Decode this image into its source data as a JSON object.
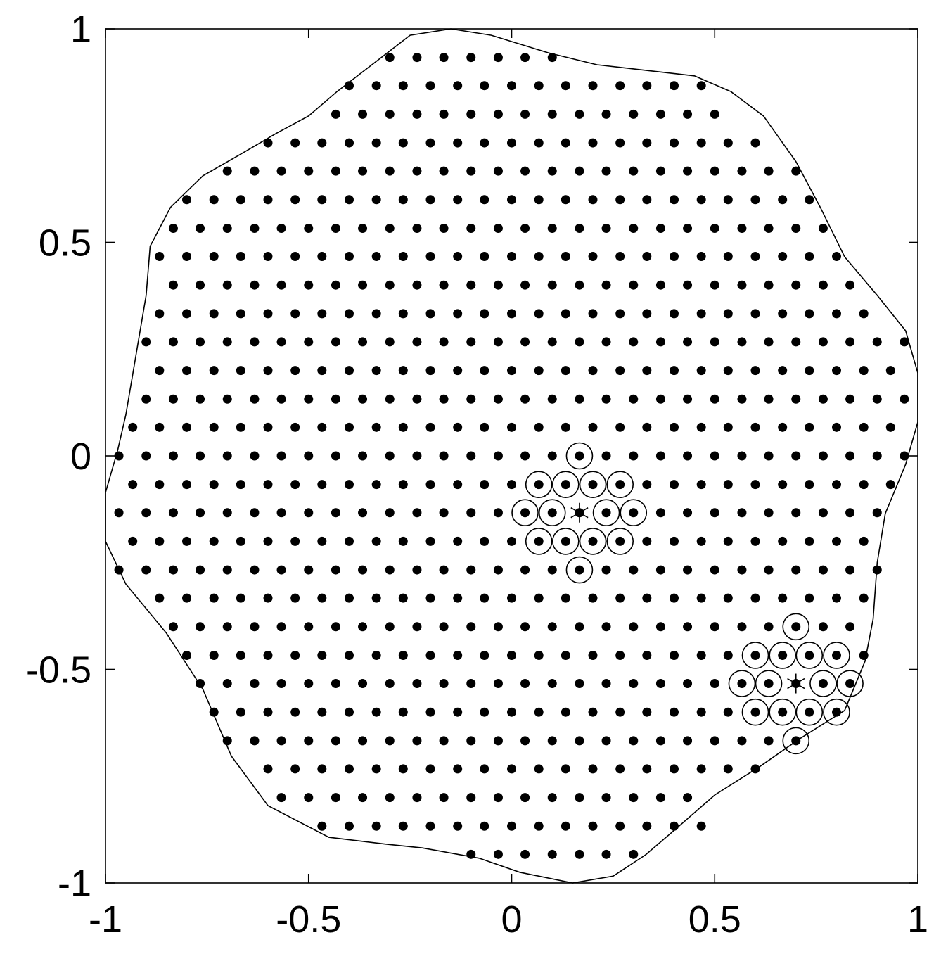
{
  "chart_data": {
    "type": "scatter",
    "xlim": [
      -1,
      1
    ],
    "ylim": [
      -1,
      1
    ],
    "xticks": [
      -1,
      -0.5,
      0,
      0.5,
      1
    ],
    "yticks": [
      -1,
      -0.5,
      0,
      0.5,
      1
    ],
    "boundary": {
      "x": [
        -0.15,
        -0.05,
        0.09,
        0.21,
        0.33,
        0.45,
        0.54,
        0.62,
        0.7,
        0.76,
        0.82,
        0.9,
        0.97,
        1.0,
        1.0,
        0.97,
        0.92,
        0.9,
        0.89,
        0.87,
        0.82,
        0.71,
        0.61,
        0.5,
        0.4,
        0.33,
        0.25,
        0.15,
        0.02,
        -0.08,
        -0.22,
        -0.31,
        -0.45,
        -0.6,
        -0.69,
        -0.76,
        -0.85,
        -0.95,
        -1.0,
        -1.0,
        -0.97,
        -0.95,
        -0.9,
        -0.89,
        -0.84,
        -0.76,
        -0.67,
        -0.58,
        -0.5,
        -0.43,
        -0.34,
        -0.25
      ],
      "y": [
        1.0,
        0.985,
        0.944,
        0.916,
        0.903,
        0.89,
        0.853,
        0.796,
        0.689,
        0.582,
        0.466,
        0.376,
        0.293,
        0.194,
        0.079,
        -0.02,
        -0.135,
        -0.25,
        -0.382,
        -0.481,
        -0.596,
        -0.662,
        -0.728,
        -0.794,
        -0.877,
        -0.934,
        -0.984,
        -1.0,
        -0.975,
        -0.942,
        -0.918,
        -0.909,
        -0.893,
        -0.819,
        -0.703,
        -0.547,
        -0.415,
        -0.3,
        -0.2,
        -0.086,
        0.013,
        0.096,
        0.376,
        0.491,
        0.582,
        0.656,
        0.705,
        0.755,
        0.796,
        0.853,
        0.919,
        0.985
      ]
    },
    "dots": [
      {
        "y": 0.933,
        "x": [
          -0.3,
          -0.233,
          -0.167,
          -0.1,
          -0.033,
          0.033,
          0.1
        ]
      },
      {
        "y": 0.867,
        "x": [
          -0.4,
          -0.333,
          -0.267,
          -0.2,
          -0.133,
          -0.067,
          0,
          0.067,
          0.133,
          0.2,
          0.267,
          0.333,
          0.4,
          0.467
        ]
      },
      {
        "y": 0.8,
        "x": [
          -0.433,
          -0.367,
          -0.3,
          -0.233,
          -0.167,
          -0.1,
          -0.033,
          0.033,
          0.1,
          0.167,
          0.233,
          0.3,
          0.367,
          0.433,
          0.5
        ]
      },
      {
        "y": 0.733,
        "x": [
          -0.6,
          -0.533,
          -0.467,
          -0.4,
          -0.333,
          -0.267,
          -0.2,
          -0.133,
          -0.067,
          0,
          0.067,
          0.133,
          0.2,
          0.267,
          0.333,
          0.4,
          0.467,
          0.533,
          0.6
        ]
      },
      {
        "y": 0.667,
        "x": [
          -0.7,
          -0.633,
          -0.567,
          -0.5,
          -0.433,
          -0.367,
          -0.3,
          -0.233,
          -0.167,
          -0.1,
          -0.033,
          0.033,
          0.1,
          0.167,
          0.233,
          0.3,
          0.367,
          0.433,
          0.5,
          0.567,
          0.633,
          0.7
        ]
      },
      {
        "y": 0.6,
        "x": [
          -0.8,
          -0.733,
          -0.667,
          -0.6,
          -0.533,
          -0.467,
          -0.4,
          -0.333,
          -0.267,
          -0.2,
          -0.133,
          -0.067,
          0,
          0.067,
          0.133,
          0.2,
          0.267,
          0.333,
          0.4,
          0.467,
          0.533,
          0.6,
          0.667,
          0.733
        ]
      },
      {
        "y": 0.533,
        "x": [
          -0.833,
          -0.767,
          -0.7,
          -0.633,
          -0.567,
          -0.5,
          -0.433,
          -0.367,
          -0.3,
          -0.233,
          -0.167,
          -0.1,
          -0.033,
          0.033,
          0.1,
          0.167,
          0.233,
          0.3,
          0.367,
          0.433,
          0.5,
          0.567,
          0.633,
          0.7,
          0.767
        ]
      },
      {
        "y": 0.467,
        "x": [
          -0.867,
          -0.8,
          -0.733,
          -0.667,
          -0.6,
          -0.533,
          -0.467,
          -0.4,
          -0.333,
          -0.267,
          -0.2,
          -0.133,
          -0.067,
          0,
          0.067,
          0.133,
          0.2,
          0.267,
          0.333,
          0.4,
          0.467,
          0.533,
          0.6,
          0.667,
          0.733,
          0.8
        ]
      },
      {
        "y": 0.4,
        "x": [
          -0.833,
          -0.767,
          -0.7,
          -0.633,
          -0.567,
          -0.5,
          -0.433,
          -0.367,
          -0.3,
          -0.233,
          -0.167,
          -0.1,
          -0.033,
          0.033,
          0.1,
          0.167,
          0.233,
          0.3,
          0.367,
          0.433,
          0.5,
          0.567,
          0.633,
          0.7,
          0.767,
          0.833
        ]
      },
      {
        "y": 0.333,
        "x": [
          -0.867,
          -0.8,
          -0.733,
          -0.667,
          -0.6,
          -0.533,
          -0.467,
          -0.4,
          -0.333,
          -0.267,
          -0.2,
          -0.133,
          -0.067,
          0,
          0.067,
          0.133,
          0.2,
          0.267,
          0.333,
          0.4,
          0.467,
          0.533,
          0.6,
          0.667,
          0.733,
          0.8,
          0.867
        ]
      },
      {
        "y": 0.267,
        "x": [
          -0.9,
          -0.833,
          -0.767,
          -0.7,
          -0.633,
          -0.567,
          -0.5,
          -0.433,
          -0.367,
          -0.3,
          -0.233,
          -0.167,
          -0.1,
          -0.033,
          0.033,
          0.1,
          0.167,
          0.233,
          0.3,
          0.367,
          0.433,
          0.5,
          0.567,
          0.633,
          0.7,
          0.767,
          0.833,
          0.9,
          0.967
        ]
      },
      {
        "y": 0.2,
        "x": [
          -0.867,
          -0.8,
          -0.733,
          -0.667,
          -0.6,
          -0.533,
          -0.467,
          -0.4,
          -0.333,
          -0.267,
          -0.2,
          -0.133,
          -0.067,
          0,
          0.067,
          0.133,
          0.2,
          0.267,
          0.333,
          0.4,
          0.467,
          0.533,
          0.6,
          0.667,
          0.733,
          0.8,
          0.867,
          0.933
        ]
      },
      {
        "y": 0.133,
        "x": [
          -0.9,
          -0.833,
          -0.767,
          -0.7,
          -0.633,
          -0.567,
          -0.5,
          -0.433,
          -0.367,
          -0.3,
          -0.233,
          -0.167,
          -0.1,
          -0.033,
          0.033,
          0.1,
          0.167,
          0.233,
          0.3,
          0.367,
          0.433,
          0.5,
          0.567,
          0.633,
          0.7,
          0.767,
          0.833,
          0.9,
          0.967
        ]
      },
      {
        "y": 0.067,
        "x": [
          -0.933,
          -0.867,
          -0.8,
          -0.733,
          -0.667,
          -0.6,
          -0.533,
          -0.467,
          -0.4,
          -0.333,
          -0.267,
          -0.2,
          -0.133,
          -0.067,
          0,
          0.067,
          0.133,
          0.2,
          0.267,
          0.333,
          0.4,
          0.467,
          0.533,
          0.6,
          0.667,
          0.733,
          0.8,
          0.867,
          0.933
        ]
      },
      {
        "y": 0,
        "x": [
          -0.967,
          -0.9,
          -0.833,
          -0.767,
          -0.7,
          -0.633,
          -0.567,
          -0.5,
          -0.433,
          -0.367,
          -0.3,
          -0.233,
          -0.167,
          -0.1,
          -0.033,
          0.033,
          0.1,
          0.167,
          0.233,
          0.3,
          0.367,
          0.433,
          0.5,
          0.567,
          0.633,
          0.7,
          0.767,
          0.833,
          0.9,
          0.967
        ]
      },
      {
        "y": -0.067,
        "x": [
          -0.933,
          -0.867,
          -0.8,
          -0.733,
          -0.667,
          -0.6,
          -0.533,
          -0.467,
          -0.4,
          -0.333,
          -0.267,
          -0.2,
          -0.133,
          -0.067,
          0,
          0.067,
          0.133,
          0.2,
          0.267,
          0.333,
          0.4,
          0.467,
          0.533,
          0.6,
          0.667,
          0.733,
          0.8,
          0.867,
          0.933
        ]
      },
      {
        "y": -0.133,
        "x": [
          -0.967,
          -0.9,
          -0.833,
          -0.767,
          -0.7,
          -0.633,
          -0.567,
          -0.5,
          -0.433,
          -0.367,
          -0.3,
          -0.233,
          -0.167,
          -0.1,
          -0.033,
          0.033,
          0.1,
          0.167,
          0.233,
          0.3,
          0.367,
          0.433,
          0.5,
          0.567,
          0.633,
          0.7,
          0.767,
          0.833,
          0.9
        ]
      },
      {
        "y": -0.2,
        "x": [
          -0.933,
          -0.867,
          -0.8,
          -0.733,
          -0.667,
          -0.6,
          -0.533,
          -0.467,
          -0.4,
          -0.333,
          -0.267,
          -0.2,
          -0.133,
          -0.067,
          0,
          0.067,
          0.133,
          0.2,
          0.267,
          0.333,
          0.4,
          0.467,
          0.533,
          0.6,
          0.667,
          0.733,
          0.8,
          0.867
        ]
      },
      {
        "y": -0.267,
        "x": [
          -0.967,
          -0.9,
          -0.833,
          -0.767,
          -0.7,
          -0.633,
          -0.567,
          -0.5,
          -0.433,
          -0.367,
          -0.3,
          -0.233,
          -0.167,
          -0.1,
          -0.033,
          0.033,
          0.1,
          0.167,
          0.233,
          0.3,
          0.367,
          0.433,
          0.5,
          0.567,
          0.633,
          0.7,
          0.767,
          0.833,
          0.9
        ]
      },
      {
        "y": -0.333,
        "x": [
          -0.867,
          -0.8,
          -0.733,
          -0.667,
          -0.6,
          -0.533,
          -0.467,
          -0.4,
          -0.333,
          -0.267,
          -0.2,
          -0.133,
          -0.067,
          0,
          0.067,
          0.133,
          0.2,
          0.267,
          0.333,
          0.4,
          0.467,
          0.533,
          0.6,
          0.667,
          0.733,
          0.8,
          0.867
        ]
      },
      {
        "y": -0.4,
        "x": [
          -0.833,
          -0.767,
          -0.7,
          -0.633,
          -0.567,
          -0.5,
          -0.433,
          -0.367,
          -0.3,
          -0.233,
          -0.167,
          -0.1,
          -0.033,
          0.033,
          0.1,
          0.167,
          0.233,
          0.3,
          0.367,
          0.433,
          0.5,
          0.567,
          0.633,
          0.7,
          0.767,
          0.833
        ]
      },
      {
        "y": -0.467,
        "x": [
          -0.8,
          -0.733,
          -0.667,
          -0.6,
          -0.533,
          -0.467,
          -0.4,
          -0.333,
          -0.267,
          -0.2,
          -0.133,
          -0.067,
          0,
          0.067,
          0.133,
          0.2,
          0.267,
          0.333,
          0.4,
          0.467,
          0.533,
          0.6,
          0.667,
          0.733,
          0.8,
          0.867
        ]
      },
      {
        "y": -0.533,
        "x": [
          -0.767,
          -0.7,
          -0.633,
          -0.567,
          -0.5,
          -0.433,
          -0.367,
          -0.3,
          -0.233,
          -0.167,
          -0.1,
          -0.033,
          0.033,
          0.1,
          0.167,
          0.233,
          0.3,
          0.367,
          0.433,
          0.5,
          0.567,
          0.633,
          0.7,
          0.767,
          0.833
        ]
      },
      {
        "y": -0.6,
        "x": [
          -0.733,
          -0.667,
          -0.6,
          -0.533,
          -0.467,
          -0.4,
          -0.333,
          -0.267,
          -0.2,
          -0.133,
          -0.067,
          0,
          0.067,
          0.133,
          0.2,
          0.267,
          0.333,
          0.4,
          0.467,
          0.533,
          0.6,
          0.667,
          0.733,
          0.8
        ]
      },
      {
        "y": -0.667,
        "x": [
          -0.7,
          -0.633,
          -0.567,
          -0.5,
          -0.433,
          -0.367,
          -0.3,
          -0.233,
          -0.167,
          -0.1,
          -0.033,
          0.033,
          0.1,
          0.167,
          0.233,
          0.3,
          0.367,
          0.433,
          0.5,
          0.567,
          0.633,
          0.7
        ]
      },
      {
        "y": -0.733,
        "x": [
          -0.6,
          -0.533,
          -0.467,
          -0.4,
          -0.333,
          -0.267,
          -0.2,
          -0.133,
          -0.067,
          0,
          0.067,
          0.133,
          0.2,
          0.267,
          0.333,
          0.4,
          0.467,
          0.533,
          0.6
        ]
      },
      {
        "y": -0.8,
        "x": [
          -0.567,
          -0.5,
          -0.433,
          -0.367,
          -0.3,
          -0.233,
          -0.167,
          -0.1,
          -0.033,
          0.033,
          0.1,
          0.167,
          0.233,
          0.3,
          0.367,
          0.433
        ]
      },
      {
        "y": -0.867,
        "x": [
          -0.467,
          -0.4,
          -0.333,
          -0.267,
          -0.2,
          -0.133,
          -0.067,
          0,
          0.067,
          0.133,
          0.2,
          0.267,
          0.333,
          0.4,
          0.467
        ]
      },
      {
        "y": -0.933,
        "x": [
          -0.1,
          -0.033,
          0.033,
          0.1,
          0.167,
          0.233,
          0.3
        ]
      }
    ],
    "circles": {
      "x": [
        0.167,
        0.067,
        0.133,
        0.2,
        0.267,
        0.033,
        0.1,
        0.233,
        0.3,
        0.067,
        0.133,
        0.2,
        0.267,
        0.167,
        0.7,
        0.6,
        0.667,
        0.733,
        0.8,
        0.567,
        0.633,
        0.767,
        0.833,
        0.6,
        0.667,
        0.733,
        0.8,
        0.7
      ],
      "y": [
        0,
        -0.067,
        -0.067,
        -0.067,
        -0.067,
        -0.133,
        -0.133,
        -0.133,
        -0.133,
        -0.2,
        -0.2,
        -0.2,
        -0.2,
        -0.267,
        -0.4,
        -0.467,
        -0.467,
        -0.467,
        -0.467,
        -0.533,
        -0.533,
        -0.533,
        -0.533,
        -0.6,
        -0.6,
        -0.6,
        -0.6,
        -0.667
      ]
    },
    "stars": {
      "x": [
        0.167,
        0.7
      ],
      "y": [
        -0.133,
        -0.533
      ]
    }
  }
}
